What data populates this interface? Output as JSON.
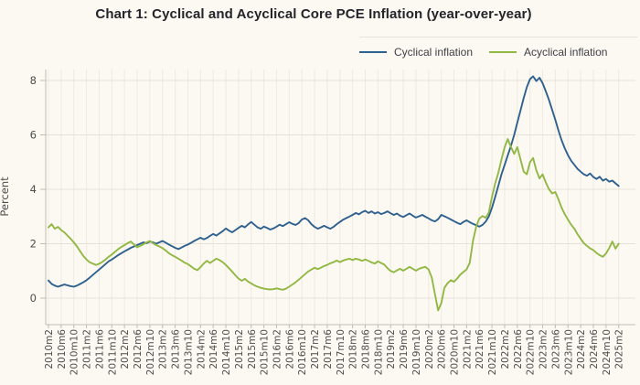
{
  "title": "Chart 1: Cyclical and Acyclical Core PCE Inflation (year-over-year)",
  "legend": {
    "items": [
      {
        "label": "Cyclical inflation",
        "color": "#2f618e"
      },
      {
        "label": "Acyclical inflation",
        "color": "#92b844"
      }
    ]
  },
  "colors": {
    "background": "#fcf8f2",
    "grid_h": "#e7e2d8",
    "grid_v": "#efeae1",
    "axis": "#c2bcb2",
    "tick_text": "#4e4e4e",
    "title_text": "#23252b"
  },
  "chart_data": {
    "type": "line",
    "ylabel": "Percent",
    "y_ticks": [
      0,
      2,
      4,
      6,
      8
    ],
    "ylim": [
      -0.95,
      8.4
    ],
    "x_start": "2010m2",
    "x_end": "2025m2",
    "frequency": "monthly",
    "grid": true,
    "legend_position": "top-right",
    "x_tick_labels": [
      "2010m2",
      "2010m6",
      "2010m10",
      "2011m2",
      "2011m6",
      "2011m10",
      "2012m2",
      "2012m6",
      "2012m10",
      "2013m2",
      "2013m6",
      "2013m10",
      "2014m2",
      "2014m6",
      "2014m10",
      "2015m2",
      "2015m6",
      "2015m10",
      "2016m2",
      "2016m6",
      "2016m10",
      "2017m2",
      "2017m6",
      "2017m10",
      "2018m2",
      "2018m6",
      "2018m10",
      "2019m2",
      "2019m6",
      "2019m10",
      "2020m2",
      "2020m6",
      "2020m10",
      "2021m2",
      "2021m6",
      "2021m10",
      "2022m2",
      "2022m6",
      "2022m10",
      "2023m2",
      "2023m6",
      "2023m10",
      "2024m2",
      "2024m6",
      "2024m10",
      "2025m2"
    ],
    "series": [
      {
        "name": "Cyclical inflation",
        "color": "#2f618e",
        "values": [
          0.65,
          0.52,
          0.46,
          0.42,
          0.46,
          0.5,
          0.47,
          0.44,
          0.42,
          0.46,
          0.52,
          0.58,
          0.66,
          0.75,
          0.85,
          0.95,
          1.05,
          1.15,
          1.25,
          1.35,
          1.42,
          1.5,
          1.58,
          1.65,
          1.72,
          1.78,
          1.85,
          1.9,
          1.95,
          2.0,
          2.05,
          2.02,
          2.08,
          2.05,
          2.0,
          2.05,
          2.1,
          2.04,
          1.97,
          1.91,
          1.85,
          1.8,
          1.86,
          1.92,
          1.97,
          2.03,
          2.1,
          2.16,
          2.22,
          2.16,
          2.21,
          2.29,
          2.36,
          2.3,
          2.38,
          2.46,
          2.56,
          2.48,
          2.42,
          2.5,
          2.58,
          2.66,
          2.6,
          2.71,
          2.8,
          2.7,
          2.6,
          2.55,
          2.63,
          2.58,
          2.52,
          2.56,
          2.63,
          2.7,
          2.65,
          2.72,
          2.79,
          2.73,
          2.69,
          2.76,
          2.89,
          2.94,
          2.86,
          2.72,
          2.62,
          2.55,
          2.6,
          2.66,
          2.6,
          2.55,
          2.62,
          2.72,
          2.8,
          2.88,
          2.94,
          3.0,
          3.06,
          3.13,
          3.08,
          3.16,
          3.21,
          3.13,
          3.19,
          3.11,
          3.16,
          3.09,
          3.13,
          3.19,
          3.12,
          3.06,
          3.11,
          3.03,
          2.98,
          3.05,
          3.11,
          3.03,
          2.96,
          3.01,
          3.06,
          2.99,
          2.93,
          2.86,
          2.82,
          2.9,
          3.06,
          3.01,
          2.95,
          2.89,
          2.83,
          2.77,
          2.72,
          2.8,
          2.86,
          2.79,
          2.73,
          2.68,
          2.63,
          2.69,
          2.81,
          3.0,
          3.32,
          3.72,
          4.12,
          4.55,
          4.9,
          5.25,
          5.6,
          6.0,
          6.45,
          6.9,
          7.35,
          7.75,
          8.05,
          8.15,
          7.98,
          8.1,
          7.9,
          7.6,
          7.28,
          6.92,
          6.55,
          6.15,
          5.8,
          5.5,
          5.25,
          5.05,
          4.9,
          4.75,
          4.65,
          4.55,
          4.5,
          4.58,
          4.45,
          4.38,
          4.46,
          4.32,
          4.38,
          4.28,
          4.32,
          4.22,
          4.12
        ]
      },
      {
        "name": "Acyclical inflation",
        "color": "#92b844",
        "values": [
          2.6,
          2.72,
          2.55,
          2.62,
          2.5,
          2.42,
          2.3,
          2.18,
          2.05,
          1.9,
          1.72,
          1.55,
          1.42,
          1.32,
          1.27,
          1.22,
          1.26,
          1.33,
          1.42,
          1.52,
          1.6,
          1.7,
          1.8,
          1.88,
          1.95,
          2.02,
          2.08,
          1.97,
          1.87,
          1.92,
          1.98,
          2.05,
          2.1,
          2.02,
          1.95,
          1.9,
          1.84,
          1.75,
          1.65,
          1.58,
          1.52,
          1.45,
          1.38,
          1.3,
          1.25,
          1.17,
          1.08,
          1.03,
          1.14,
          1.27,
          1.37,
          1.29,
          1.37,
          1.45,
          1.4,
          1.32,
          1.22,
          1.1,
          0.97,
          0.84,
          0.72,
          0.64,
          0.71,
          0.61,
          0.54,
          0.47,
          0.42,
          0.38,
          0.35,
          0.33,
          0.32,
          0.33,
          0.36,
          0.33,
          0.31,
          0.35,
          0.42,
          0.5,
          0.58,
          0.68,
          0.78,
          0.88,
          0.98,
          1.05,
          1.12,
          1.07,
          1.12,
          1.18,
          1.22,
          1.28,
          1.32,
          1.38,
          1.32,
          1.38,
          1.42,
          1.45,
          1.4,
          1.45,
          1.42,
          1.37,
          1.42,
          1.37,
          1.31,
          1.27,
          1.35,
          1.29,
          1.23,
          1.1,
          1.0,
          0.95,
          1.02,
          1.08,
          1.01,
          1.08,
          1.15,
          1.08,
          1.01,
          1.08,
          1.12,
          1.15,
          1.05,
          0.75,
          0.15,
          -0.45,
          -0.18,
          0.38,
          0.55,
          0.66,
          0.6,
          0.72,
          0.86,
          0.96,
          1.06,
          1.3,
          2.1,
          2.62,
          2.92,
          3.02,
          2.95,
          3.15,
          3.72,
          4.22,
          4.6,
          5.1,
          5.55,
          5.85,
          5.55,
          5.3,
          5.55,
          5.1,
          4.65,
          4.55,
          5.0,
          5.15,
          4.7,
          4.4,
          4.55,
          4.25,
          4.0,
          3.85,
          3.9,
          3.62,
          3.32,
          3.08,
          2.88,
          2.7,
          2.55,
          2.35,
          2.18,
          2.02,
          1.92,
          1.83,
          1.76,
          1.66,
          1.58,
          1.52,
          1.64,
          1.84,
          2.08,
          1.82,
          2.0
        ]
      }
    ]
  }
}
